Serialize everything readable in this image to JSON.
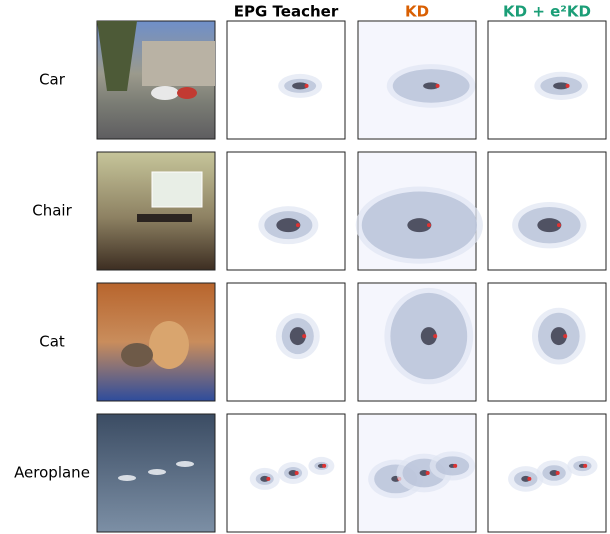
{
  "columns": [
    {
      "label": "EPG Teacher",
      "color": "#000000"
    },
    {
      "label": "KD",
      "color": "#d95f02"
    },
    {
      "label": "KD + e²KD",
      "color": "#1b9e77"
    }
  ],
  "rows": [
    {
      "label": "Car"
    },
    {
      "label": "Chair"
    },
    {
      "label": "Cat"
    },
    {
      "label": "Aeroplane"
    }
  ]
}
